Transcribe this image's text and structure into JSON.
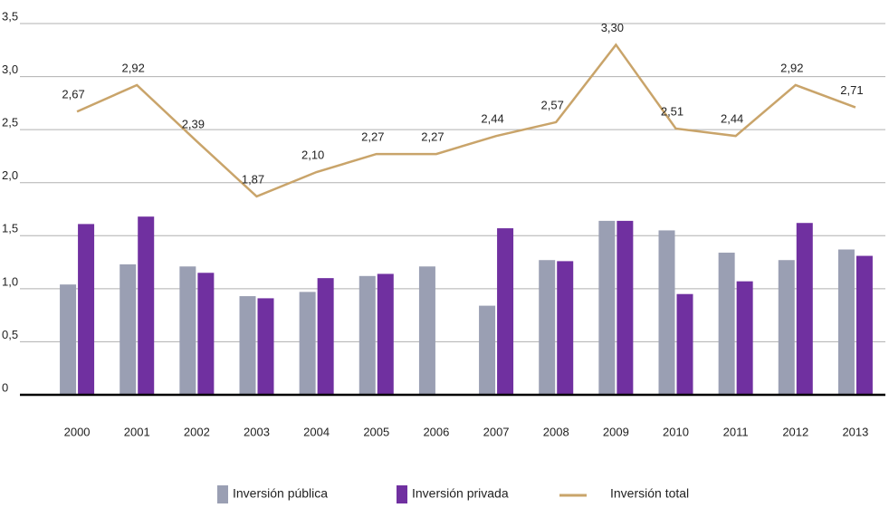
{
  "chart_data": {
    "type": "bar-line",
    "categories": [
      "2000",
      "2001",
      "2002",
      "2003",
      "2004",
      "2005",
      "2006",
      "2007",
      "2008",
      "2009",
      "2010",
      "2011",
      "2012",
      "2013"
    ],
    "series": [
      {
        "name": "Inversión pública",
        "type": "bar",
        "color": "#9a9fb3",
        "values": [
          1.04,
          1.23,
          1.21,
          0.93,
          0.97,
          1.12,
          1.21,
          0.84,
          1.27,
          1.64,
          1.55,
          1.34,
          1.27,
          1.37
        ]
      },
      {
        "name": "Inversión privada",
        "type": "bar",
        "color": "#7030a0",
        "values": [
          1.61,
          1.68,
          1.15,
          0.91,
          1.1,
          1.14,
          null,
          1.57,
          1.26,
          1.64,
          0.95,
          1.07,
          1.62,
          1.31
        ]
      },
      {
        "name": "Inversión total",
        "type": "line",
        "color": "#c9a46a",
        "values": [
          2.67,
          2.92,
          2.39,
          1.87,
          2.1,
          2.27,
          2.27,
          2.44,
          2.57,
          3.3,
          2.51,
          2.44,
          2.92,
          2.71
        ],
        "value_labels": [
          "2,67",
          "2,92",
          "2,39",
          "1,87",
          "2,10",
          "2,27",
          "2,27",
          "2,44",
          "2,57",
          "3,30",
          "2,51",
          "2,44",
          "2,92",
          "2,71"
        ]
      }
    ],
    "ylim": [
      0,
      3.5
    ],
    "yticks": [
      0,
      {
        "value": 0.5,
        "label": "0,5"
      },
      {
        "value": 1,
        "label": "1,0"
      },
      {
        "value": 1.5,
        "label": "1,5"
      },
      {
        "value": 2,
        "label": "2,0"
      },
      {
        "value": 2.5,
        "label": "2,5"
      },
      {
        "value": 3,
        "label": "3,0"
      },
      {
        "value": 3.5,
        "label": "3,5"
      }
    ],
    "grid": true
  }
}
